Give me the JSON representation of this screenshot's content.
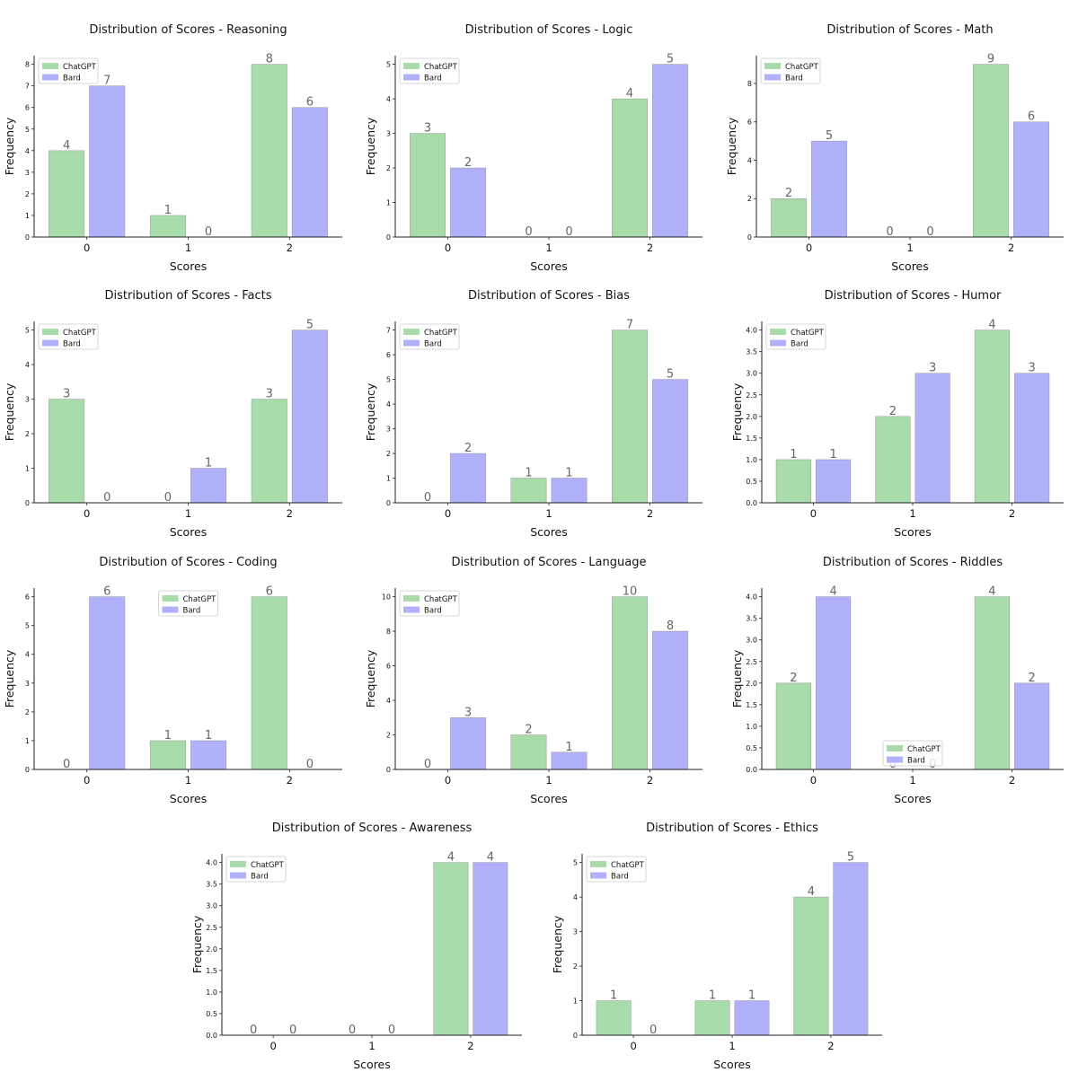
{
  "colors": {
    "ChatGPT": "#a8dcab",
    "Bard": "#b1b0fb",
    "value_label": "#666666"
  },
  "chart_data": [
    {
      "type": "bar",
      "title": "Distribution of Scores - Reasoning",
      "xlabel": "Scores",
      "ylabel": "Frequency",
      "categories": [
        "0",
        "1",
        "2"
      ],
      "series": [
        {
          "name": "ChatGPT",
          "values": [
            4,
            1,
            8
          ]
        },
        {
          "name": "Bard",
          "values": [
            7,
            0,
            6
          ]
        }
      ],
      "yticks": [
        "0",
        "1",
        "2",
        "3",
        "4",
        "5",
        "6",
        "7",
        "8"
      ],
      "ylim": [
        0,
        8.4
      ],
      "legend": "upper-left",
      "grid": false
    },
    {
      "type": "bar",
      "title": "Distribution of Scores - Logic",
      "xlabel": "Scores",
      "ylabel": "Frequency",
      "categories": [
        "0",
        "1",
        "2"
      ],
      "series": [
        {
          "name": "ChatGPT",
          "values": [
            3,
            0,
            4
          ]
        },
        {
          "name": "Bard",
          "values": [
            2,
            0,
            5
          ]
        }
      ],
      "yticks": [
        "0",
        "1",
        "2",
        "3",
        "4",
        "5"
      ],
      "ylim": [
        0,
        5.25
      ],
      "legend": "upper-left",
      "grid": false
    },
    {
      "type": "bar",
      "title": "Distribution of Scores - Math",
      "xlabel": "Scores",
      "ylabel": "Frequency",
      "categories": [
        "0",
        "1",
        "2"
      ],
      "series": [
        {
          "name": "ChatGPT",
          "values": [
            2,
            0,
            9
          ]
        },
        {
          "name": "Bard",
          "values": [
            5,
            0,
            6
          ]
        }
      ],
      "yticks": [
        "0",
        "2",
        "4",
        "6",
        "8"
      ],
      "ylim": [
        0,
        9.45
      ],
      "legend": "upper-left",
      "grid": false
    },
    {
      "type": "bar",
      "title": "Distribution of Scores - Facts",
      "xlabel": "Scores",
      "ylabel": "Frequency",
      "categories": [
        "0",
        "1",
        "2"
      ],
      "series": [
        {
          "name": "ChatGPT",
          "values": [
            3,
            0,
            3
          ]
        },
        {
          "name": "Bard",
          "values": [
            0,
            1,
            5
          ]
        }
      ],
      "yticks": [
        "0",
        "1",
        "2",
        "3",
        "4",
        "5"
      ],
      "ylim": [
        0,
        5.25
      ],
      "legend": "upper-left",
      "grid": false
    },
    {
      "type": "bar",
      "title": "Distribution of Scores - Bias",
      "xlabel": "Scores",
      "ylabel": "Frequency",
      "categories": [
        "0",
        "1",
        "2"
      ],
      "series": [
        {
          "name": "ChatGPT",
          "values": [
            0,
            1,
            7
          ]
        },
        {
          "name": "Bard",
          "values": [
            2,
            1,
            5
          ]
        }
      ],
      "yticks": [
        "0",
        "1",
        "2",
        "3",
        "4",
        "5",
        "6",
        "7"
      ],
      "ylim": [
        0,
        7.35
      ],
      "legend": "upper-left",
      "grid": false
    },
    {
      "type": "bar",
      "title": "Distribution of Scores - Humor",
      "xlabel": "Scores",
      "ylabel": "Frequency",
      "categories": [
        "0",
        "1",
        "2"
      ],
      "series": [
        {
          "name": "ChatGPT",
          "values": [
            1,
            2,
            4
          ]
        },
        {
          "name": "Bard",
          "values": [
            1,
            3,
            3
          ]
        }
      ],
      "yticks": [
        "0.0",
        "0.5",
        "1.0",
        "1.5",
        "2.0",
        "2.5",
        "3.0",
        "3.5",
        "4.0"
      ],
      "ylim": [
        0,
        4.2
      ],
      "legend": "upper-left",
      "grid": false
    },
    {
      "type": "bar",
      "title": "Distribution of Scores - Coding",
      "xlabel": "Scores",
      "ylabel": "Frequency",
      "categories": [
        "0",
        "1",
        "2"
      ],
      "series": [
        {
          "name": "ChatGPT",
          "values": [
            0,
            1,
            6
          ]
        },
        {
          "name": "Bard",
          "values": [
            6,
            1,
            0
          ]
        }
      ],
      "yticks": [
        "0",
        "1",
        "2",
        "3",
        "4",
        "5",
        "6"
      ],
      "ylim": [
        0,
        6.3
      ],
      "legend": "upper-center",
      "grid": false
    },
    {
      "type": "bar",
      "title": "Distribution of Scores - Language",
      "xlabel": "Scores",
      "ylabel": "Frequency",
      "categories": [
        "0",
        "1",
        "2"
      ],
      "series": [
        {
          "name": "ChatGPT",
          "values": [
            0,
            2,
            10
          ]
        },
        {
          "name": "Bard",
          "values": [
            3,
            1,
            8
          ]
        }
      ],
      "yticks": [
        "0",
        "2",
        "4",
        "6",
        "8",
        "10"
      ],
      "ylim": [
        0,
        10.5
      ],
      "legend": "upper-left",
      "grid": false
    },
    {
      "type": "bar",
      "title": "Distribution of Scores - Riddles",
      "xlabel": "Scores",
      "ylabel": "Frequency",
      "categories": [
        "0",
        "1",
        "2"
      ],
      "series": [
        {
          "name": "ChatGPT",
          "values": [
            2,
            0,
            4
          ]
        },
        {
          "name": "Bard",
          "values": [
            4,
            0,
            2
          ]
        }
      ],
      "yticks": [
        "0.0",
        "0.5",
        "1.0",
        "1.5",
        "2.0",
        "2.5",
        "3.0",
        "3.5",
        "4.0"
      ],
      "ylim": [
        0,
        4.2
      ],
      "legend": "lower-center",
      "grid": false
    },
    {
      "type": "bar",
      "title": "Distribution of Scores - Awareness",
      "xlabel": "Scores",
      "ylabel": "Frequency",
      "categories": [
        "0",
        "1",
        "2"
      ],
      "series": [
        {
          "name": "ChatGPT",
          "values": [
            0,
            0,
            4
          ]
        },
        {
          "name": "Bard",
          "values": [
            0,
            0,
            4
          ]
        }
      ],
      "yticks": [
        "0.0",
        "0.5",
        "1.0",
        "1.5",
        "2.0",
        "2.5",
        "3.0",
        "3.5",
        "4.0"
      ],
      "ylim": [
        0,
        4.2
      ],
      "legend": "upper-left",
      "grid": false
    },
    {
      "type": "bar",
      "title": "Distribution of Scores - Ethics",
      "xlabel": "Scores",
      "ylabel": "Frequency",
      "categories": [
        "0",
        "1",
        "2"
      ],
      "series": [
        {
          "name": "ChatGPT",
          "values": [
            1,
            1,
            4
          ]
        },
        {
          "name": "Bard",
          "values": [
            0,
            1,
            5
          ]
        }
      ],
      "yticks": [
        "0",
        "1",
        "2",
        "3",
        "4",
        "5"
      ],
      "ylim": [
        0,
        5.25
      ],
      "legend": "upper-left",
      "grid": false
    }
  ]
}
